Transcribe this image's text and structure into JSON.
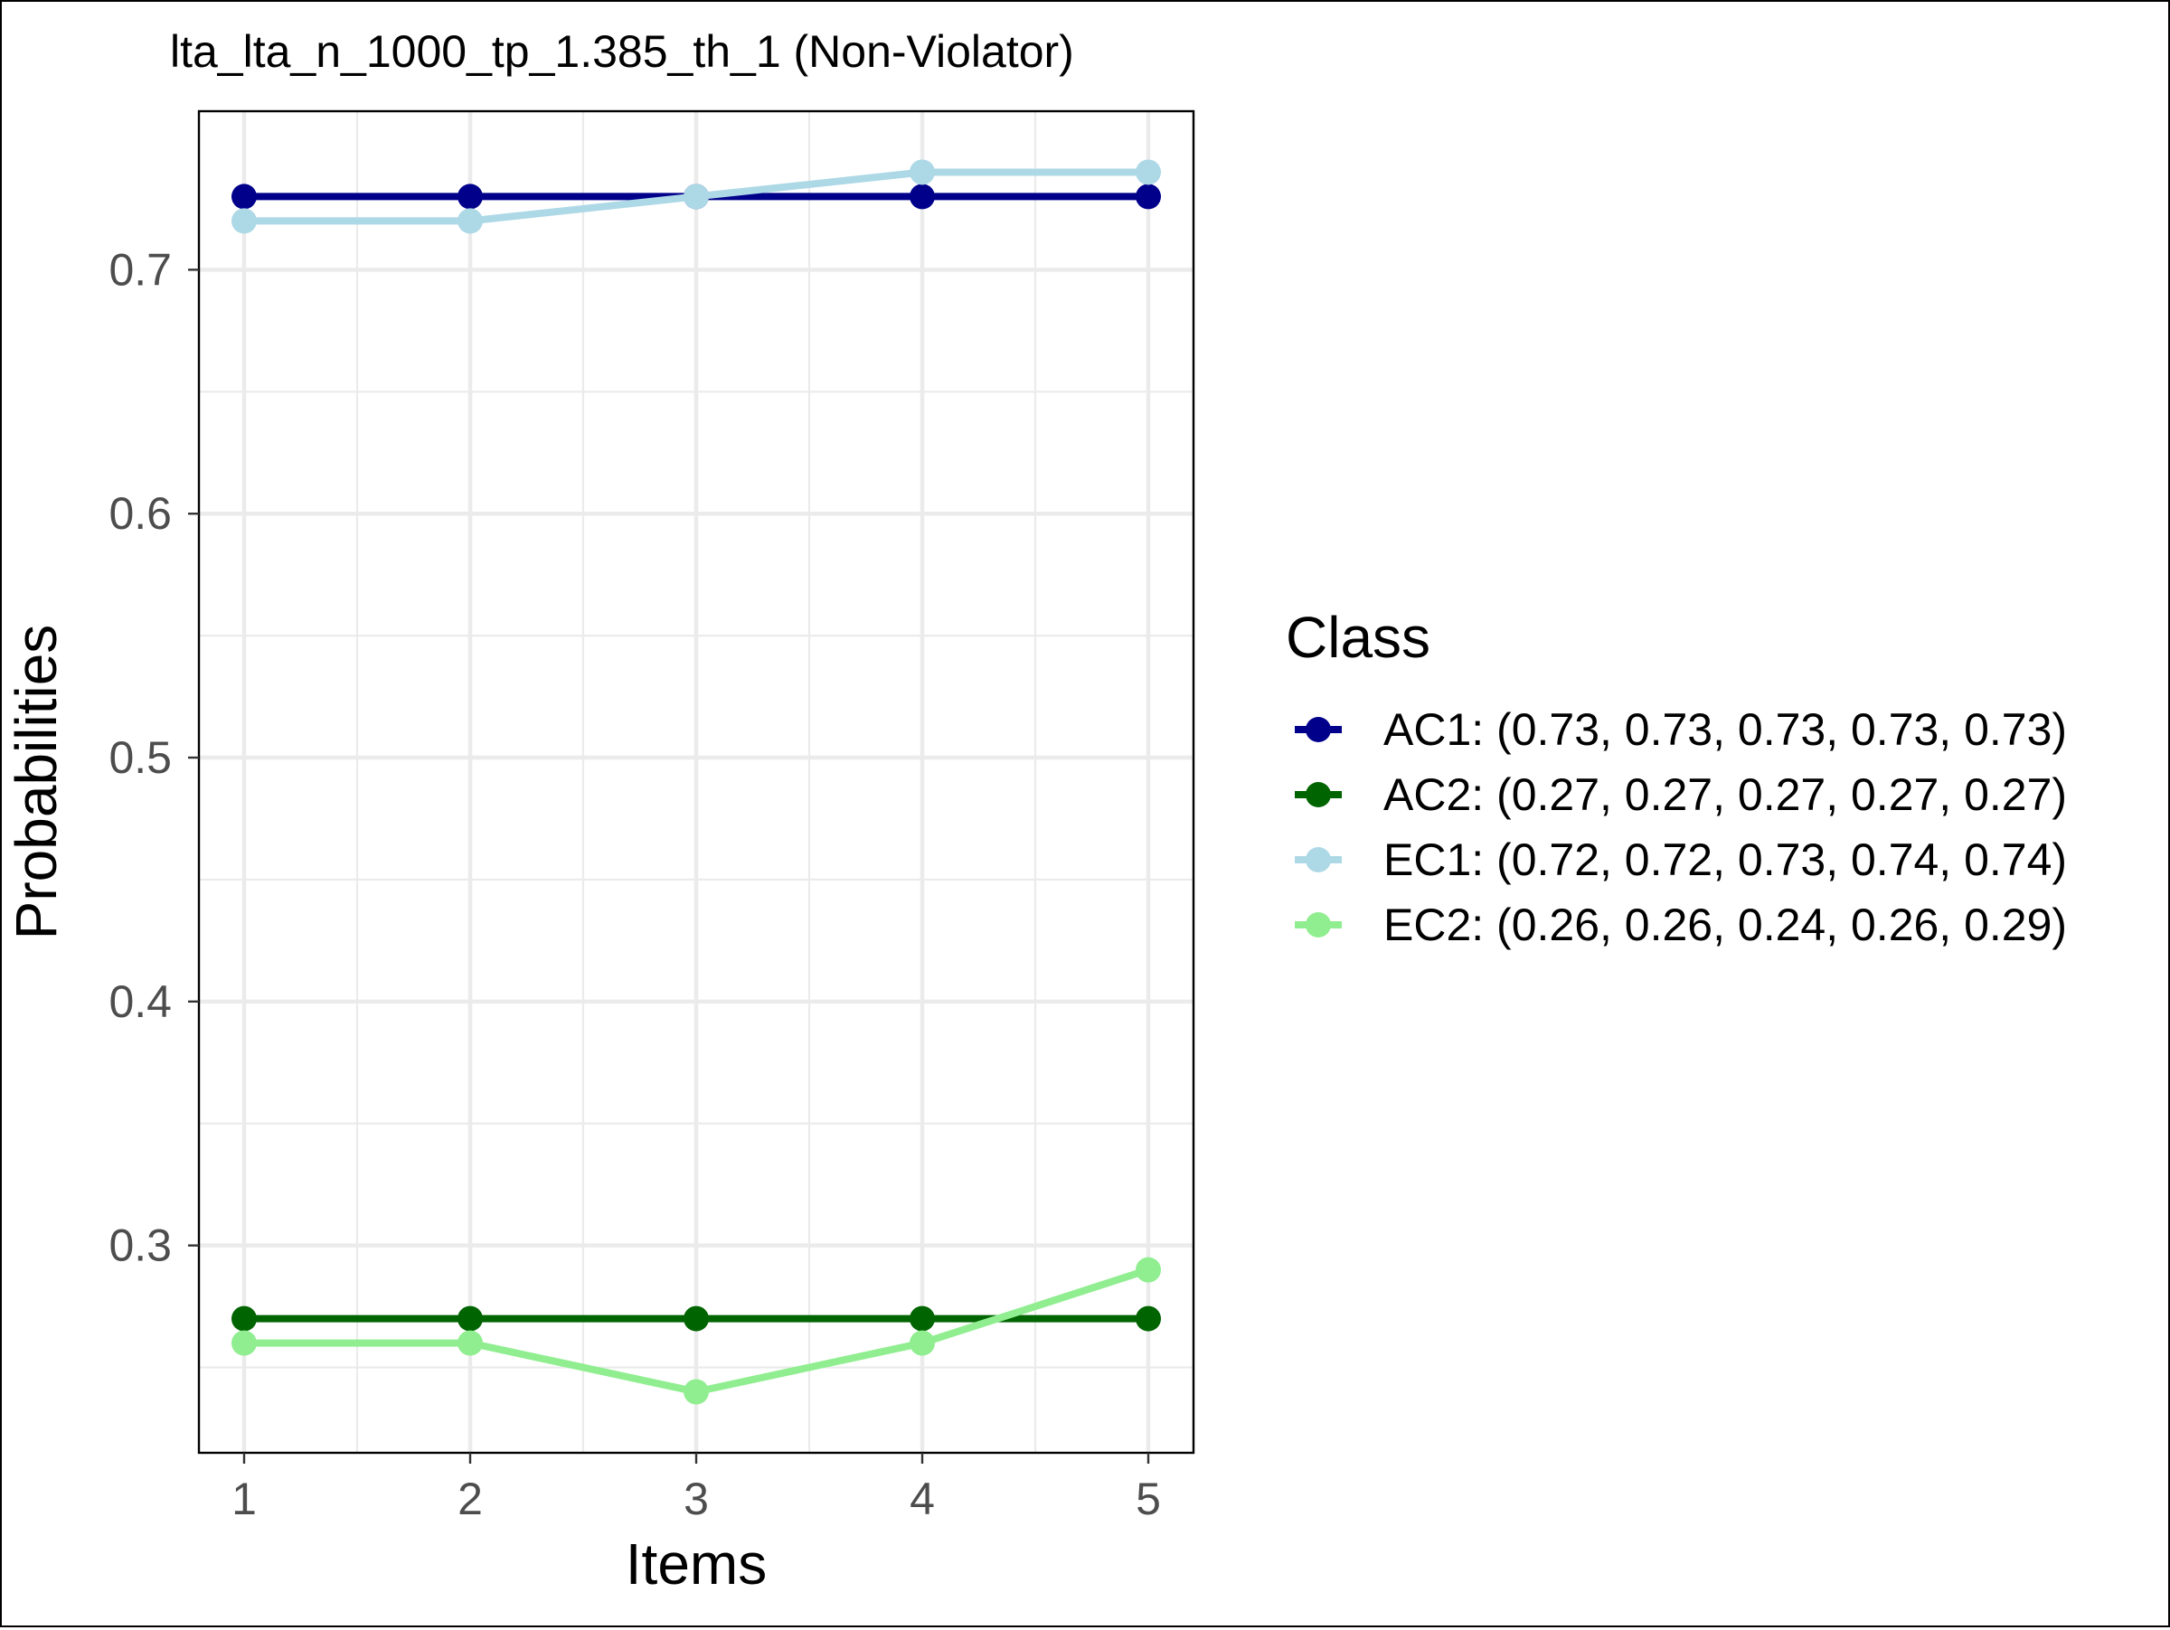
{
  "chart_data": {
    "type": "line",
    "title": "lta_lta_n_1000_tp_1.385_th_1 (Non-Violator)",
    "xlabel": "Items",
    "ylabel": "Probabilities",
    "x": [
      1,
      2,
      3,
      4,
      5
    ],
    "xlim": [
      0.8,
      5.2
    ],
    "ylim": [
      0.215,
      0.765
    ],
    "x_ticks": [
      1,
      2,
      3,
      4,
      5
    ],
    "y_ticks": [
      0.3,
      0.4,
      0.5,
      0.6,
      0.7
    ],
    "grid": true,
    "legend": {
      "title": "Class",
      "position": "right"
    },
    "series": [
      {
        "name": "AC1",
        "label": "AC1: (0.73, 0.73, 0.73, 0.73, 0.73)",
        "color": "#00008b",
        "values": [
          0.73,
          0.73,
          0.73,
          0.73,
          0.73
        ]
      },
      {
        "name": "AC2",
        "label": "AC2: (0.27, 0.27, 0.27, 0.27, 0.27)",
        "color": "#006400",
        "values": [
          0.27,
          0.27,
          0.27,
          0.27,
          0.27
        ]
      },
      {
        "name": "EC1",
        "label": "EC1: (0.72, 0.72, 0.73, 0.74, 0.74)",
        "color": "#add8e6",
        "values": [
          0.72,
          0.72,
          0.73,
          0.74,
          0.74
        ]
      },
      {
        "name": "EC2",
        "label": "EC2: (0.26, 0.26, 0.24, 0.26, 0.29)",
        "color": "#90ee90",
        "values": [
          0.26,
          0.26,
          0.24,
          0.26,
          0.29
        ]
      }
    ]
  }
}
